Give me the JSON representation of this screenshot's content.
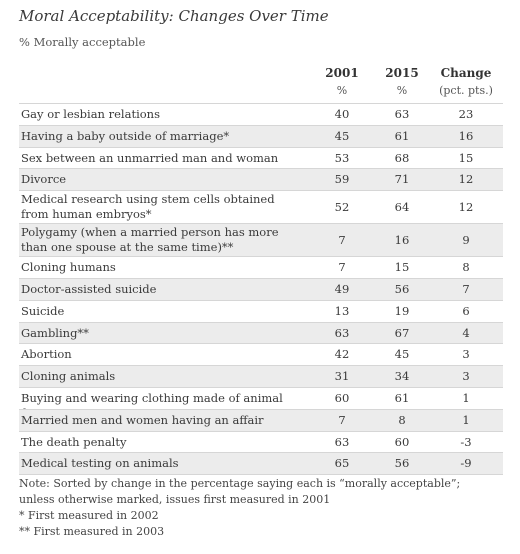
{
  "title": "Moral Acceptability: Changes Over Time",
  "subtitle": "% Morally acceptable",
  "columns": [
    {
      "header": "2001",
      "unit": "%"
    },
    {
      "header": "2015",
      "unit": "%"
    },
    {
      "header": "Change",
      "unit": "(pct. pts.)"
    }
  ],
  "rows": [
    {
      "issue": "Gay or lesbian relations",
      "y2001": "40",
      "y2015": "63",
      "change": "23"
    },
    {
      "issue": "Having a baby outside of marriage*",
      "y2001": "45",
      "y2015": "61",
      "change": "16"
    },
    {
      "issue": "Sex between an unmarried man and woman",
      "y2001": "53",
      "y2015": "68",
      "change": "15"
    },
    {
      "issue": "Divorce",
      "y2001": "59",
      "y2015": "71",
      "change": "12"
    },
    {
      "issue": "Medical research using stem cells obtained from human embryos*",
      "y2001": "52",
      "y2015": "64",
      "change": "12"
    },
    {
      "issue": "Polygamy (when a married person has more than one spouse at the same time)**",
      "y2001": "7",
      "y2015": "16",
      "change": "9"
    },
    {
      "issue": "Cloning humans",
      "y2001": "7",
      "y2015": "15",
      "change": "8"
    },
    {
      "issue": "Doctor-assisted suicide",
      "y2001": "49",
      "y2015": "56",
      "change": "7"
    },
    {
      "issue": "Suicide",
      "y2001": "13",
      "y2015": "19",
      "change": "6"
    },
    {
      "issue": "Gambling**",
      "y2001": "63",
      "y2015": "67",
      "change": "4"
    },
    {
      "issue": "Abortion",
      "y2001": "42",
      "y2015": "45",
      "change": "3"
    },
    {
      "issue": "Cloning animals",
      "y2001": "31",
      "y2015": "34",
      "change": "3"
    },
    {
      "issue": "Buying and wearing clothing made of animal fur",
      "y2001": "60",
      "y2015": "61",
      "change": "1"
    },
    {
      "issue": "Married men and women having an affair",
      "y2001": "7",
      "y2015": "8",
      "change": "1"
    },
    {
      "issue": "The death penalty",
      "y2001": "63",
      "y2015": "60",
      "change": "-3"
    },
    {
      "issue": "Medical testing on animals",
      "y2001": "65",
      "y2015": "56",
      "change": "-9"
    }
  ],
  "notes": {
    "line1": "Note: Sorted by change in the percentage saying each is “morally acceptable”;",
    "line2": "unless otherwise marked, issues first measured in 2001",
    "line3": "* First measured in 2002",
    "line4": "** First measured in 2003"
  }
}
